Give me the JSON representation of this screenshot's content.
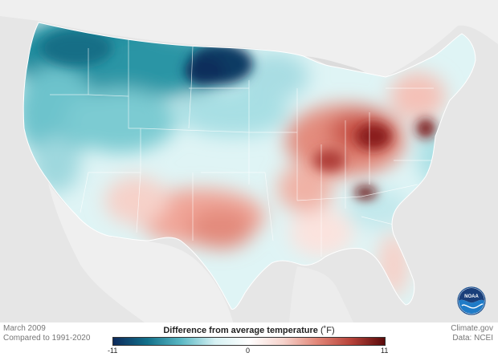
{
  "map": {
    "period": "March 2009",
    "baseline": "Compared to 1991-2020",
    "credit": "Climate.gov",
    "data_source": "Data: NCEI",
    "logo_text": "NOAA"
  },
  "legend": {
    "title": "Difference from average temperature",
    "unit": "(˚F)",
    "min_label": "-11",
    "mid_label": "0",
    "max_label": "11",
    "colors": [
      "#0d2a5c",
      "#12708a",
      "#5ab8c4",
      "#d6f1f3",
      "#ffffff",
      "#f6d3cc",
      "#e28779",
      "#b8433a",
      "#5a0a0a"
    ]
  },
  "regions": [
    {
      "name": "northern-plains",
      "anomaly": -9
    },
    {
      "name": "pacific-northwest",
      "anomaly": -6
    },
    {
      "name": "northern-rockies",
      "anomaly": -5
    },
    {
      "name": "california",
      "anomaly": -2
    },
    {
      "name": "ohio-valley",
      "anomaly": 5
    },
    {
      "name": "texas",
      "anomaly": 4
    },
    {
      "name": "southeast",
      "anomaly": 1
    },
    {
      "name": "mid-atlantic",
      "anomaly": -1
    },
    {
      "name": "northeast",
      "anomaly": 2
    }
  ]
}
